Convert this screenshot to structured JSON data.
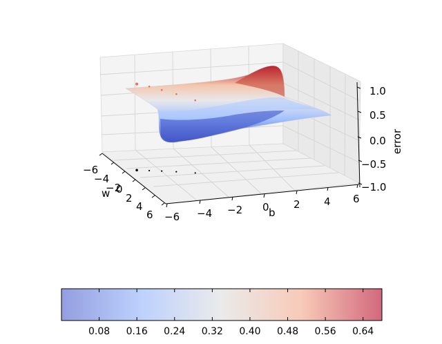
{
  "chart_data": {
    "type": "surface3d",
    "title": "",
    "axes": {
      "w": {
        "label": "w",
        "ticks": [
          -6,
          -4,
          -2,
          0,
          2,
          4,
          6
        ],
        "lim": [
          -6,
          6
        ]
      },
      "b": {
        "label": "b",
        "ticks": [
          -6,
          -4,
          -2,
          0,
          2,
          4,
          6
        ],
        "lim": [
          -6,
          6
        ]
      },
      "z": {
        "label": "error",
        "ticks": [
          1.0,
          0.5,
          0.0,
          -0.5,
          -1.0
        ],
        "tick_labels": [
          "1.0",
          "0.5",
          "0.0",
          "−0.5",
          "−1.0"
        ],
        "lim": [
          -1,
          1
        ]
      }
    },
    "surface": {
      "description_colormap": "coolwarm",
      "edge_high_side_error": 0.2,
      "edge_low_side_error": 0.6,
      "peak_error": 0.95,
      "trough_error": -0.3
    },
    "descent_path": {
      "color": "#e87060",
      "points": [
        {
          "w": -1.8,
          "b": -5.2,
          "error": 0.72
        },
        {
          "w": -1.5,
          "b": -4.5,
          "error": 0.68
        },
        {
          "w": -1.2,
          "b": -3.8,
          "error": 0.62
        },
        {
          "w": -0.8,
          "b": -3.0,
          "error": 0.55
        },
        {
          "w": -0.2,
          "b": -2.0,
          "error": 0.45
        }
      ]
    },
    "projection_path": {
      "color": "#000000",
      "points": [
        {
          "w": -1.8,
          "b": -5.2
        },
        {
          "w": -1.5,
          "b": -4.5
        },
        {
          "w": -1.2,
          "b": -3.8
        },
        {
          "w": -0.8,
          "b": -3.0
        },
        {
          "w": -0.2,
          "b": -2.0
        }
      ]
    },
    "colorbar": {
      "orientation": "horizontal",
      "colormap": "coolwarm",
      "range": [
        0.0,
        0.68
      ],
      "ticks": [
        0.08,
        0.16,
        0.24,
        0.32,
        0.4,
        0.48,
        0.56,
        0.64
      ],
      "tick_labels": [
        "0.08",
        "0.16",
        "0.24",
        "0.32",
        "0.40",
        "0.48",
        "0.56",
        "0.64"
      ]
    }
  }
}
